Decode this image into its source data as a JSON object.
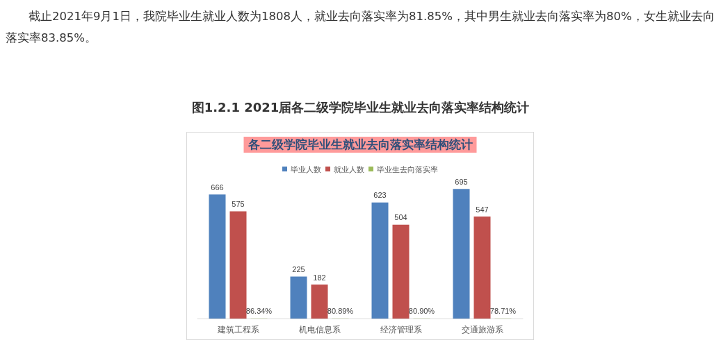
{
  "chart_data": {
    "type": "bar",
    "title": "各二级学院毕业生就业去向落实率结构统计",
    "annotations": [
      "截止2021年9月1日，我院毕业生就业人数为1808人，就业去向落实率为81.85%，其中男生就业去向落实率为80%，女生就业去向落实率83.85%。",
      "图1.2.1 2021届各二级学院毕业生就业去向落实率结构统计"
    ],
    "categories": [
      "建筑工程系",
      "机电信息系",
      "经济管理系",
      "交通旅游系"
    ],
    "series": [
      {
        "name": "毕业人数",
        "color": "#4f81bd",
        "values": [
          666,
          225,
          623,
          695
        ],
        "value_labels": [
          "666",
          "225",
          "623",
          "695"
        ]
      },
      {
        "name": "就业人数",
        "color": "#c0504d",
        "values": [
          575,
          182,
          504,
          547
        ],
        "value_labels": [
          "575",
          "182",
          "504",
          "547"
        ]
      },
      {
        "name": "毕业生去向落实率",
        "color": "#9bbb59",
        "values": [
          0.8634,
          0.8089,
          0.809,
          0.7871
        ],
        "value_labels": [
          "86.34%",
          "80.89%",
          "80.90%",
          "78.71%"
        ]
      }
    ],
    "legend": "top"
  }
}
